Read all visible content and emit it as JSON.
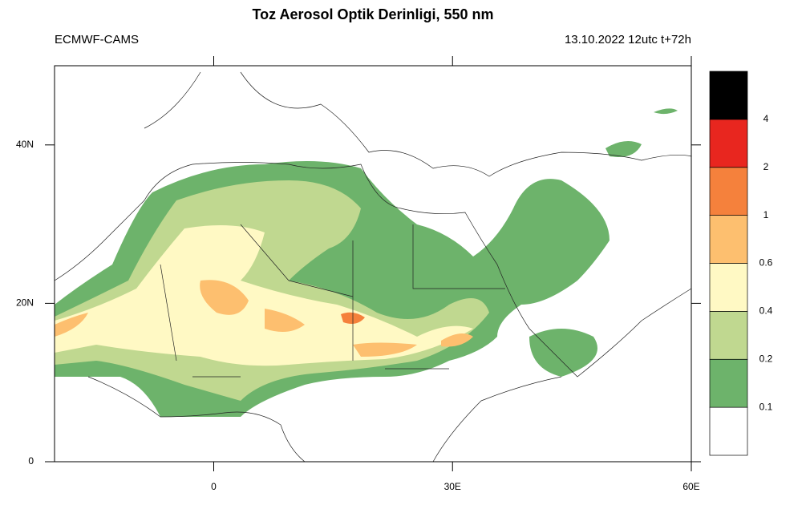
{
  "header": {
    "title": "Toz Aerosol Optik Derinligi, 550 nm",
    "left": "ECMWF-CAMS",
    "right": "13.10.2022 12utc t+72h"
  },
  "axes": {
    "lonlim": [
      -20,
      60
    ],
    "latlim": [
      0,
      50
    ],
    "yticks": [
      {
        "value": 0,
        "label": "0"
      },
      {
        "value": 20,
        "label": "20N"
      },
      {
        "value": 40,
        "label": "40N"
      }
    ],
    "xticks": [
      {
        "value": 0,
        "label": "0"
      },
      {
        "value": 30,
        "label": "30E"
      },
      {
        "value": 60,
        "label": "60E"
      }
    ]
  },
  "colorbar": {
    "colors": [
      "#ffffff",
      "#6db36b",
      "#c0d890",
      "#fff9c4",
      "#fdbf6f",
      "#f5813c",
      "#e8261f",
      "#000000"
    ],
    "labels": [
      "0.1",
      "0.2",
      "0.4",
      "0.6",
      "1",
      "2",
      "4"
    ]
  }
}
